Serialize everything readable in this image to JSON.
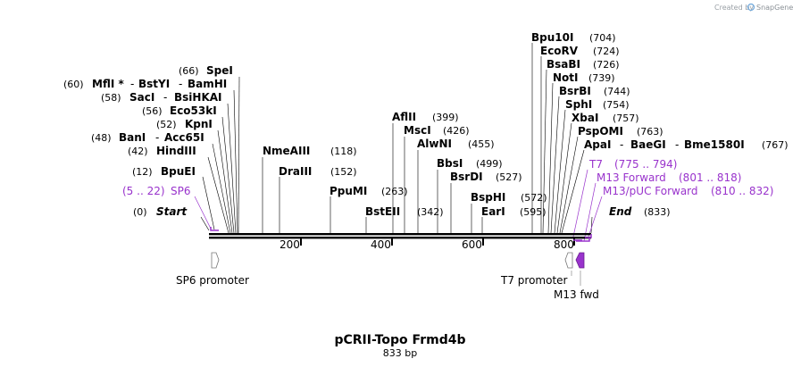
{
  "branding": {
    "created_by": "Created by",
    "app_name": "SnapGene"
  },
  "title": "pCRII-Topo Frmd4b",
  "length_label": "833 bp",
  "scale": {
    "ticks": [
      "200",
      "400",
      "600",
      "800"
    ]
  },
  "markers": {
    "start": {
      "name": "Start",
      "pos": "(0)"
    },
    "end": {
      "name": "End",
      "pos": "(833)"
    }
  },
  "enzymes": [
    {
      "name": "SpeI",
      "pos": "(66)"
    },
    {
      "name": "MflI *",
      "pos": "(60)"
    },
    {
      "name": "BstYI",
      "pos": ""
    },
    {
      "name": "BamHI",
      "pos": ""
    },
    {
      "name": "SacI",
      "pos": "(58)"
    },
    {
      "name": "BsiHKAI",
      "pos": ""
    },
    {
      "name": "Eco53kI",
      "pos": "(56)"
    },
    {
      "name": "KpnI",
      "pos": "(52)"
    },
    {
      "name": "BanI",
      "pos": "(48)"
    },
    {
      "name": "Acc65I",
      "pos": ""
    },
    {
      "name": "HindIII",
      "pos": "(42)"
    },
    {
      "name": "BpuEI",
      "pos": "(12)"
    },
    {
      "name": "NmeAIII",
      "pos": "(118)"
    },
    {
      "name": "DraIII",
      "pos": "(152)"
    },
    {
      "name": "PpuMI",
      "pos": "(263)"
    },
    {
      "name": "BstEII",
      "pos": "(342)"
    },
    {
      "name": "AflII",
      "pos": "(399)"
    },
    {
      "name": "MscI",
      "pos": "(426)"
    },
    {
      "name": "AlwNI",
      "pos": "(455)"
    },
    {
      "name": "BbsI",
      "pos": "(499)"
    },
    {
      "name": "BsrDI",
      "pos": "(527)"
    },
    {
      "name": "BspHI",
      "pos": "(572)"
    },
    {
      "name": "EarI",
      "pos": "(595)"
    },
    {
      "name": "Bpu10I",
      "pos": "(704)"
    },
    {
      "name": "EcoRV",
      "pos": "(724)"
    },
    {
      "name": "BsaBI",
      "pos": "(726)"
    },
    {
      "name": "NotI",
      "pos": "(739)"
    },
    {
      "name": "BsrBI",
      "pos": "(744)"
    },
    {
      "name": "SphI",
      "pos": "(754)"
    },
    {
      "name": "XbaI",
      "pos": "(757)"
    },
    {
      "name": "PspOMI",
      "pos": "(763)"
    },
    {
      "name": "ApaI",
      "pos": "(767)"
    },
    {
      "name": "BaeGI",
      "pos": ""
    },
    {
      "name": "Bme1580I",
      "pos": ""
    }
  ],
  "primers": [
    {
      "name": "SP6",
      "range": "(5 .. 22)"
    },
    {
      "name": "T7",
      "range": "(775 .. 794)"
    },
    {
      "name": "M13 Forward",
      "range": "(801 .. 818)"
    },
    {
      "name": "M13/pUC Forward",
      "range": "(810 .. 832)"
    }
  ],
  "features": [
    {
      "name": "SP6 promoter"
    },
    {
      "name": "T7 promoter"
    },
    {
      "name": "M13 fwd"
    }
  ],
  "colors": {
    "primer": "#9933cc",
    "feature_fill": "#9933cc",
    "line": "#000000"
  }
}
